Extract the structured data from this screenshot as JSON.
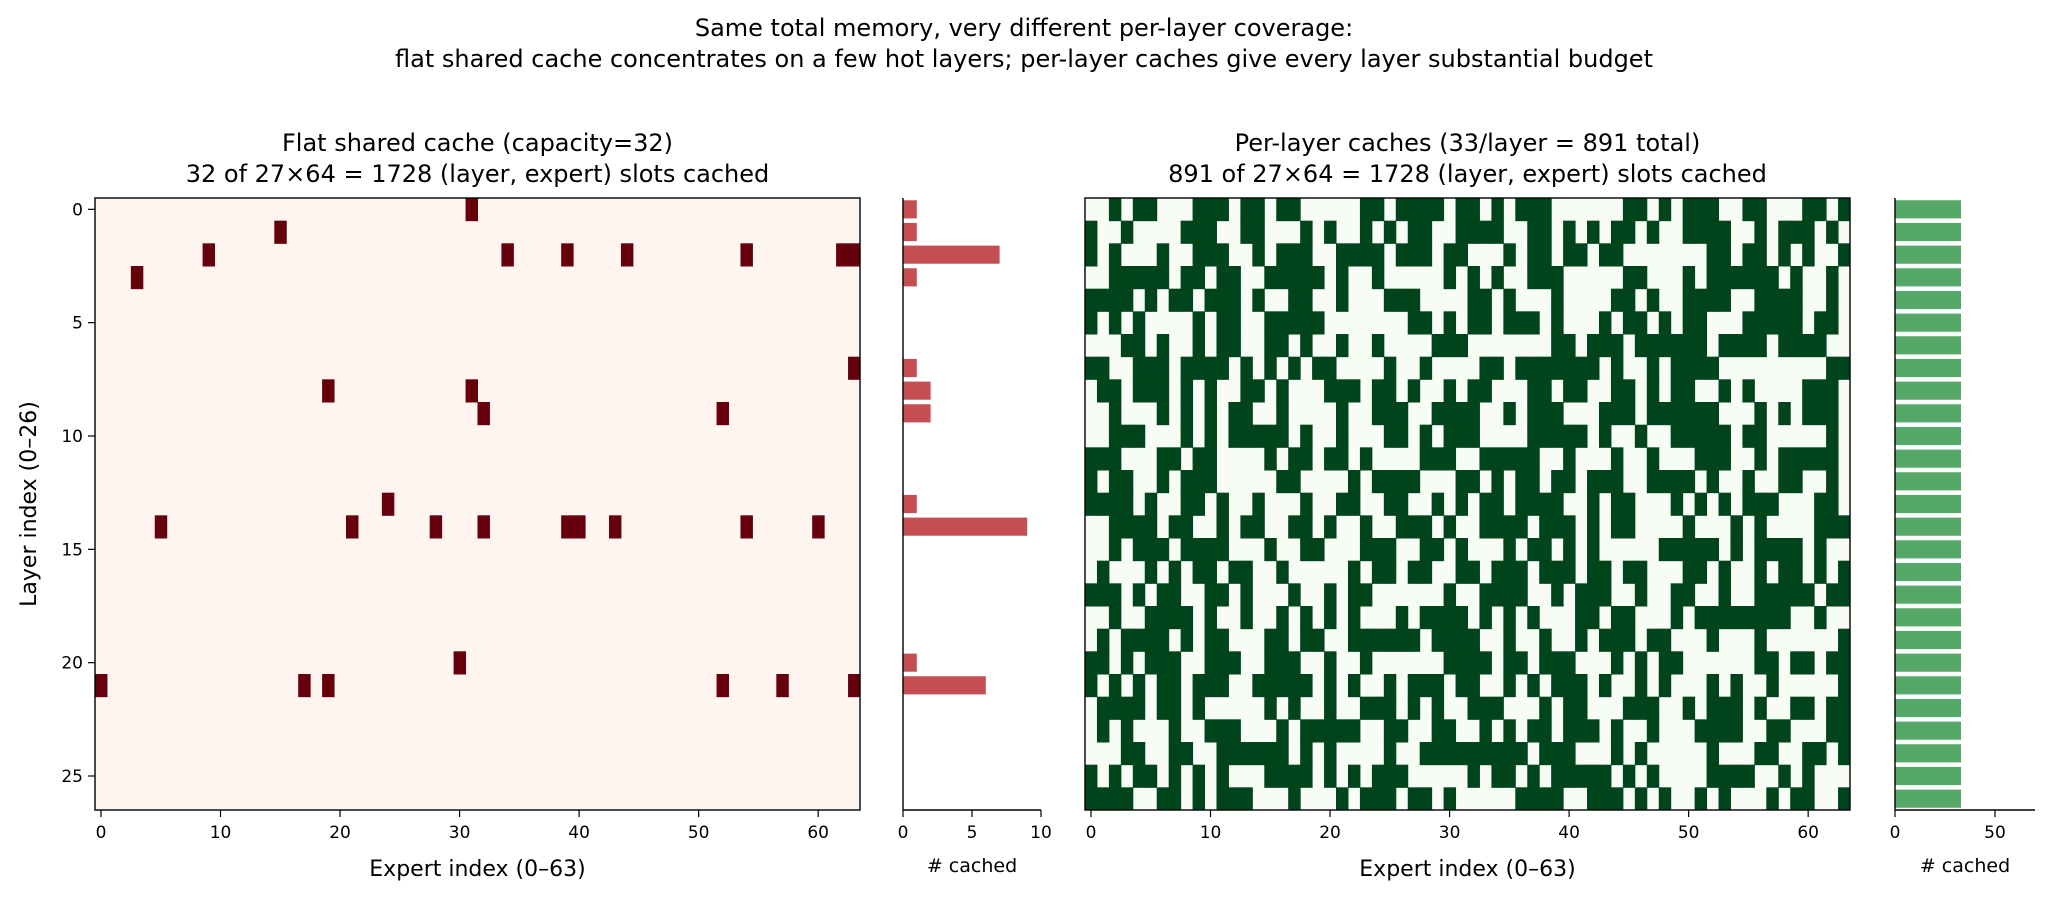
{
  "figure": {
    "suptitle_line1": "Same total memory, very different per-layer coverage:",
    "suptitle_line2": "flat shared cache concentrates on a few hot layers; per-layer caches give every layer substantial budget"
  },
  "chart_data": [
    {
      "type": "heatmap",
      "id": "flat",
      "title_line1": "Flat shared cache (capacity=32)",
      "title_line2": "32 of 27×64 = 1728 (layer, expert) slots cached",
      "xlabel": "Expert index (0–63)",
      "ylabel": "Layer index (0–26)",
      "n_rows": 27,
      "n_cols": 64,
      "xticks": [
        0,
        10,
        20,
        30,
        40,
        50,
        60
      ],
      "yticks": [
        0,
        5,
        10,
        15,
        20,
        25
      ],
      "colors": {
        "cached": "#67000d",
        "empty": "#fff5f0"
      },
      "cached_cells": {
        "0": [
          31
        ],
        "1": [
          15
        ],
        "2": [
          9,
          34,
          39,
          44,
          54,
          62,
          63
        ],
        "3": [
          3
        ],
        "7": [
          63
        ],
        "8": [
          19,
          31
        ],
        "9": [
          32,
          52
        ],
        "13": [
          24
        ],
        "14": [
          5,
          21,
          28,
          32,
          39,
          40,
          43,
          54,
          60
        ],
        "20": [
          30
        ],
        "21": [
          0,
          17,
          19,
          52,
          57,
          63
        ]
      }
    },
    {
      "type": "bar",
      "id": "flat_counts",
      "orientation": "horizontal",
      "xlabel": "# cached",
      "xlim": [
        0,
        10
      ],
      "xticks": [
        0,
        5,
        10
      ],
      "color": "#c44e52",
      "values": [
        1,
        1,
        7,
        1,
        0,
        0,
        0,
        1,
        2,
        2,
        0,
        0,
        0,
        1,
        9,
        0,
        0,
        0,
        0,
        0,
        1,
        6,
        0,
        0,
        0,
        0,
        0
      ]
    },
    {
      "type": "heatmap",
      "id": "perlayer",
      "title_line1": "Per-layer caches (33/layer = 891 total)",
      "title_line2": "891 of 27×64 = 1728 (layer, expert) slots cached",
      "xlabel": "Expert index (0–63)",
      "n_rows": 27,
      "n_cols": 64,
      "per_row": 33,
      "xticks": [
        0,
        10,
        20,
        30,
        40,
        50,
        60
      ],
      "colors": {
        "cached": "#00441b",
        "empty": "#f7fcf5"
      },
      "cached_pattern": "randomized selection of 33 experts in each of the 27 layers"
    },
    {
      "type": "bar",
      "id": "perlayer_counts",
      "orientation": "horizontal",
      "xlabel": "# cached",
      "xlim": [
        0,
        70
      ],
      "xticks": [
        0,
        50
      ],
      "color": "#55a868",
      "values": [
        33,
        33,
        33,
        33,
        33,
        33,
        33,
        33,
        33,
        33,
        33,
        33,
        33,
        33,
        33,
        33,
        33,
        33,
        33,
        33,
        33,
        33,
        33,
        33,
        33,
        33,
        33
      ]
    }
  ]
}
